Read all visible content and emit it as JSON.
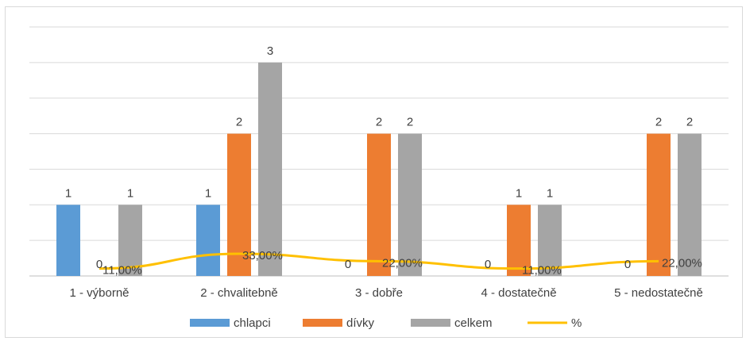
{
  "chart_data": {
    "type": "bar",
    "categories": [
      "1 - výborně",
      "2 - chvalitebně",
      "3 - dobře",
      "4 - dostatečně",
      "5 - nedostatečně"
    ],
    "series": [
      {
        "name": "chlapci",
        "kind": "bar",
        "color": "#5b9bd5",
        "values": [
          1,
          1,
          0,
          0,
          0
        ],
        "labels": [
          "1",
          "1",
          "0",
          "0",
          "0"
        ]
      },
      {
        "name": "dívky",
        "kind": "bar",
        "color": "#ed7d31",
        "values": [
          0,
          2,
          2,
          1,
          2
        ],
        "labels": [
          "0",
          "2",
          "2",
          "1",
          "2"
        ]
      },
      {
        "name": "celkem",
        "kind": "bar",
        "color": "#a5a5a5",
        "values": [
          1,
          3,
          2,
          1,
          2
        ],
        "labels": [
          "1",
          "3",
          "2",
          "1",
          "2"
        ]
      },
      {
        "name": "%",
        "kind": "line",
        "color": "#ffc000",
        "values": [
          11,
          33,
          22,
          11,
          22
        ],
        "labels": [
          "11,00%",
          "33,00%",
          "22,00%",
          "11,00%",
          "22,00%"
        ]
      }
    ],
    "ylim": [
      0,
      3.5
    ],
    "line_ylim": [
      0,
      100
    ],
    "grid": true,
    "legend": "bottom",
    "title": "",
    "xlabel": "",
    "ylabel": ""
  }
}
